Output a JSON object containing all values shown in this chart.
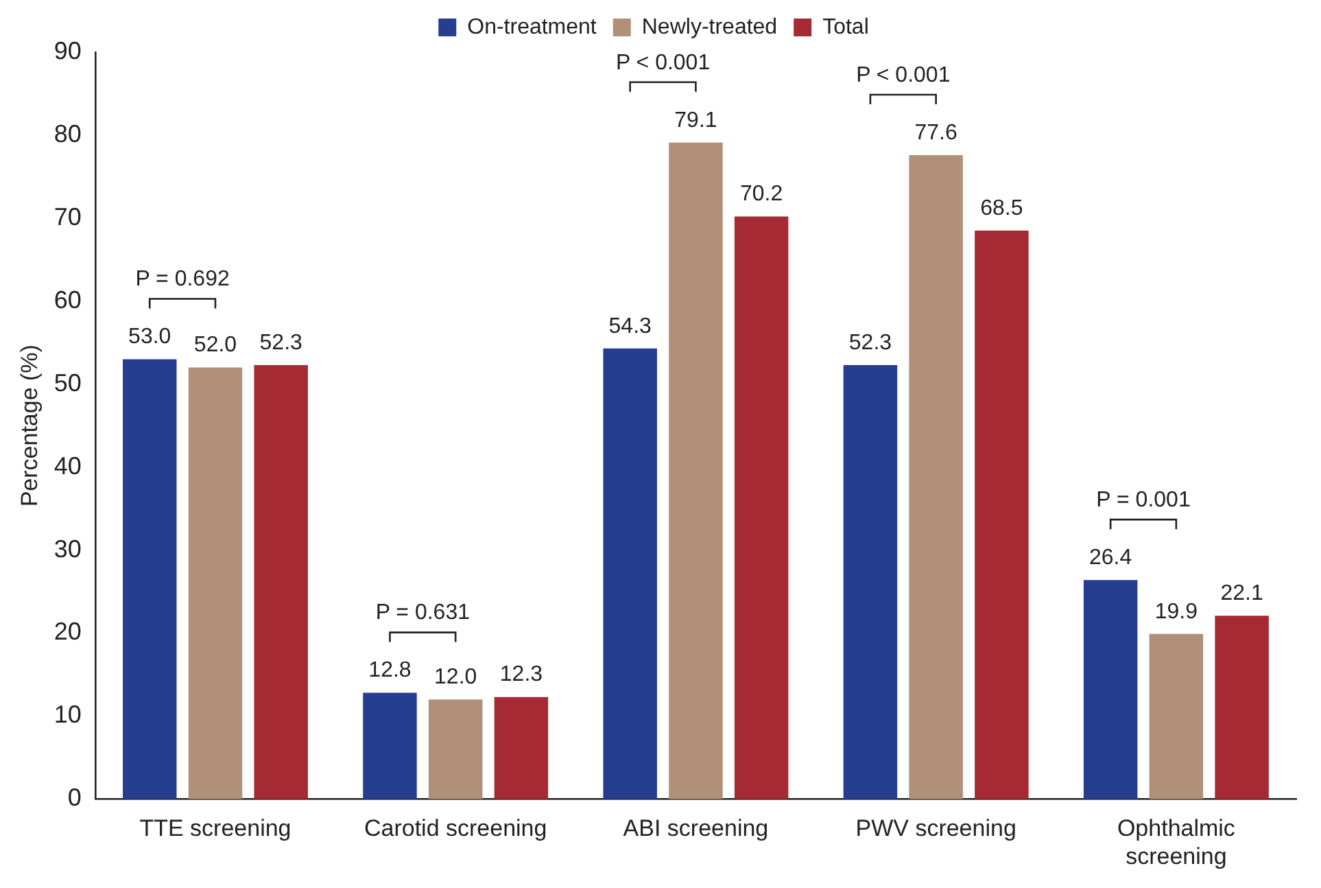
{
  "chart_data": {
    "type": "bar",
    "ylabel": "Percentage (%)",
    "categories": [
      "TTE screening",
      "Carotid screening",
      "ABI screening",
      "PWV screening",
      "Ophthalmic screening"
    ],
    "series": [
      {
        "name": "On-treatment",
        "color": "#253e8f",
        "values": [
          53.0,
          12.8,
          54.3,
          52.3,
          26.4
        ],
        "value_labels": [
          "53.0",
          "12.8",
          "54.3",
          "52.3",
          "26.4"
        ]
      },
      {
        "name": "Newly-treated",
        "color": "#b09078",
        "values": [
          52.0,
          12.0,
          79.1,
          77.6,
          19.9
        ],
        "value_labels": [
          "52.0",
          "12.0",
          "79.1",
          "77.6",
          "19.9"
        ]
      },
      {
        "name": "Total",
        "color": "#a52a33",
        "values": [
          52.3,
          12.3,
          70.2,
          68.5,
          22.1
        ],
        "value_labels": [
          "52.3",
          "12.3",
          "70.2",
          "68.5",
          "22.1"
        ]
      }
    ],
    "ylim": [
      0,
      90
    ],
    "yticks": [
      0,
      10,
      20,
      30,
      40,
      50,
      60,
      70,
      80,
      90
    ],
    "grid": false,
    "legend": "top",
    "annotations": [
      "P = 0.692",
      "P = 0.631",
      "P < 0.001",
      "P < 0.001",
      "P = 0.001"
    ]
  }
}
